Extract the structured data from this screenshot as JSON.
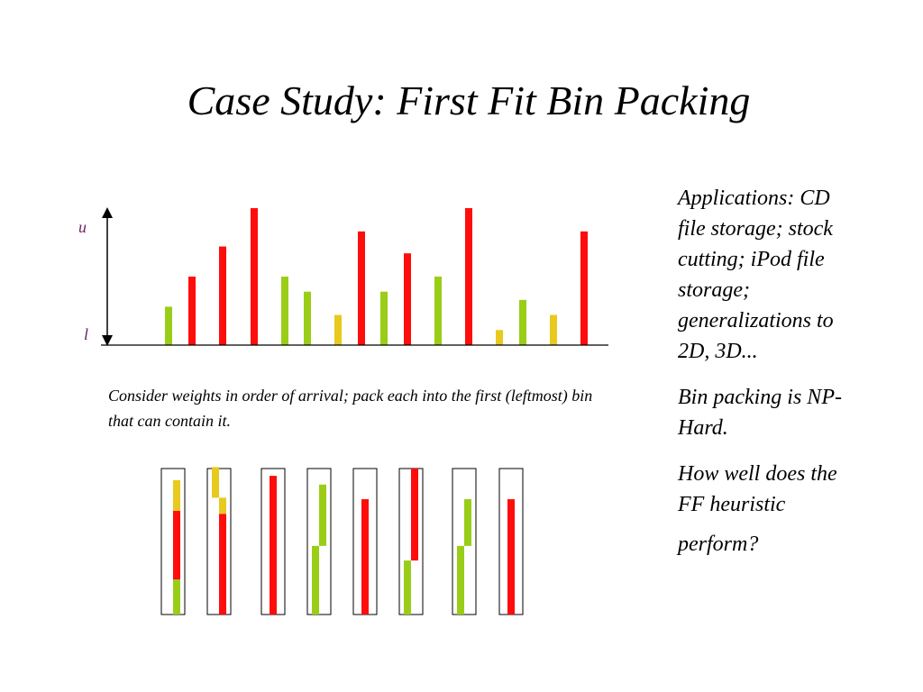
{
  "title": "Case Study: First Fit Bin Packing",
  "colors": {
    "green": "#9acd18",
    "red": "#ff0d0d",
    "yellow": "#e8c91e",
    "axis_label": "#6b1f6b",
    "line": "#000000"
  },
  "axis": {
    "upper_label": "u",
    "lower_label": "l"
  },
  "weights_in_arrival_order": [
    {
      "color": "green",
      "value": 0.28
    },
    {
      "color": "red",
      "value": 0.5
    },
    {
      "color": "red",
      "value": 0.72
    },
    {
      "color": "red",
      "value": 1.0
    },
    {
      "color": "green",
      "value": 0.5
    },
    {
      "color": "green",
      "value": 0.39
    },
    {
      "color": "yellow",
      "value": 0.22
    },
    {
      "color": "red",
      "value": 0.83
    },
    {
      "color": "green",
      "value": 0.39
    },
    {
      "color": "red",
      "value": 0.67
    },
    {
      "color": "green",
      "value": 0.5
    },
    {
      "color": "red",
      "value": 1.0
    },
    {
      "color": "yellow",
      "value": 0.11
    },
    {
      "color": "green",
      "value": 0.33
    },
    {
      "color": "yellow",
      "value": 0.22
    },
    {
      "color": "red",
      "value": 0.83
    }
  ],
  "caption": "Consider weights in order of arrival; pack each into the first (leftmost) bin that can contain it.",
  "bins": [
    {
      "items": [
        {
          "color": "green",
          "fill": 0.24
        },
        {
          "color": "red",
          "fill": 0.47
        },
        {
          "color": "yellow",
          "fill": 0.21
        }
      ]
    },
    {
      "items": [
        {
          "color": "red",
          "fill": 0.69
        },
        {
          "color": "yellow",
          "fill": 0.11
        },
        {
          "color": "yellow",
          "fill": 0.21
        }
      ]
    },
    {
      "items": [
        {
          "color": "red",
          "fill": 0.95
        }
      ]
    },
    {
      "items": [
        {
          "color": "green",
          "fill": 0.47
        },
        {
          "color": "green",
          "fill": 0.42
        }
      ]
    },
    {
      "items": [
        {
          "color": "red",
          "fill": 0.79
        }
      ]
    },
    {
      "items": [
        {
          "color": "green",
          "fill": 0.37
        },
        {
          "color": "red",
          "fill": 0.63
        }
      ]
    },
    {
      "items": [
        {
          "color": "green",
          "fill": 0.47
        },
        {
          "color": "green",
          "fill": 0.32
        }
      ]
    },
    {
      "items": [
        {
          "color": "red",
          "fill": 0.79
        }
      ]
    }
  ],
  "side": {
    "p1": "Applications: CD file storage; stock cutting; iPod file storage; generalizations to 2D, 3D...",
    "p2": "Bin packing is NP-Hard.",
    "p3a": "How well does the FF heuristic",
    "p3b": "perform?"
  }
}
